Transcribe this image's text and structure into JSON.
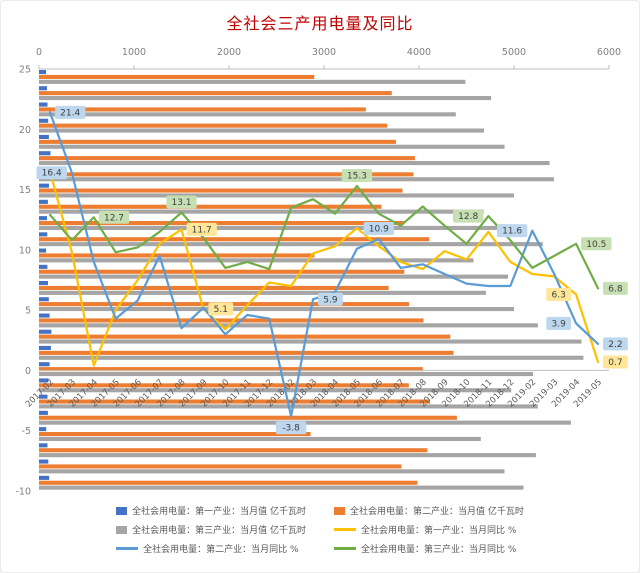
{
  "title": "全社会三产用电量及同比",
  "title_color": "#C00000",
  "legend": {
    "text_color": "#595959"
  },
  "chart_data": {
    "type": "combo-bar-line",
    "title": "全社会三产用电量及同比",
    "top_axis": {
      "min": 0,
      "max": 6000,
      "ticks": [
        0,
        1000,
        2000,
        3000,
        4000,
        5000,
        6000
      ]
    },
    "left_axis": {
      "min": -10,
      "max": 25,
      "ticks": [
        25,
        20,
        15,
        10,
        5,
        0,
        -5,
        -10
      ]
    },
    "axis_color": "#808080",
    "category_label_color": "#595959",
    "gridline_color": "#BFBFBF",
    "categories": [
      "2017-02",
      "2017-03",
      "2017-04",
      "2017-05",
      "2017-06",
      "2017-07",
      "2017-08",
      "2017-09",
      "2017-10",
      "2017-11",
      "2017-12",
      "2018-02",
      "2018-03",
      "2018-04",
      "2018-05",
      "2018-06",
      "2018-07",
      "2018-08",
      "2018-09",
      "2018-10",
      "2018-11",
      "2018-12",
      "2019-02",
      "2019-03",
      "2019-04",
      "2019-05"
    ],
    "bar_series": [
      {
        "id": "primary-value",
        "name": "全社会用电量：第一产业：当月值 亿千瓦时",
        "color": "#4472C4",
        "values": [
          75,
          84,
          90,
          97,
          104,
          121,
          115,
          105,
          94,
          84,
          87,
          75,
          88,
          95,
          103,
          112,
          130,
          125,
          112,
          100,
          90,
          94,
          76,
          90,
          98,
          106
        ]
      },
      {
        "id": "secondary-value",
        "name": "全社会用电量：第二产业：当月值 亿千瓦时",
        "color": "#ED7D31",
        "values": [
          2898,
          3714,
          3440,
          3666,
          3757,
          3957,
          3941,
          3826,
          3605,
          3839,
          4108,
          2899,
          3845,
          3680,
          3895,
          4047,
          4329,
          4364,
          4040,
          3894,
          4116,
          4399,
          2859,
          4088,
          3815,
          3984
        ]
      },
      {
        "id": "tertiary-value",
        "name": "全社会用电量：第三产业：当月值 亿千瓦时",
        "color": "#A5A5A5",
        "values": [
          4488,
          4759,
          4387,
          4684,
          4900,
          5375,
          5420,
          5000,
          4681,
          4920,
          5303,
          4574,
          4937,
          4704,
          5000,
          5250,
          5710,
          5730,
          5200,
          4970,
          5250,
          5600,
          4650,
          5230,
          4900,
          5100
        ]
      }
    ],
    "line_series": [
      {
        "id": "primary-yoy",
        "name": "全社会用电量：第一产业：当月同比 %",
        "color": "#FFC000",
        "label_bg": "#FFE699",
        "values": [
          16.5,
          9.8,
          0.4,
          5.0,
          7.5,
          10.5,
          11.7,
          5.1,
          3.4,
          5.4,
          7.3,
          7.0,
          9.7,
          10.3,
          11.8,
          10.3,
          9.0,
          8.4,
          9.9,
          9.2,
          11.5,
          9.0,
          8.0,
          7.8,
          6.3,
          0.7
        ]
      },
      {
        "id": "secondary-yoy",
        "name": "全社会用电量：第二产业：当月同比 %",
        "color": "#5B9BD5",
        "label_bg": "#BDD7EE",
        "values": [
          21.4,
          16.4,
          9.0,
          4.3,
          5.8,
          9.5,
          3.5,
          5.2,
          3.0,
          4.6,
          4.3,
          -3.8,
          5.9,
          6.5,
          10.1,
          10.9,
          8.5,
          8.8,
          8.0,
          7.2,
          7.0,
          7.0,
          11.6,
          8.0,
          3.9,
          2.2
        ]
      },
      {
        "id": "tertiary-yoy",
        "name": "全社会用电量：第三产业：当月同比 %",
        "color": "#70AD47",
        "label_bg": "#C6E0B4",
        "values": [
          12.9,
          10.8,
          12.7,
          9.8,
          10.2,
          11.5,
          13.1,
          11.0,
          8.5,
          9.0,
          8.4,
          13.5,
          14.2,
          13.0,
          15.3,
          13.0,
          12.0,
          13.6,
          12.0,
          10.5,
          12.8,
          10.8,
          8.5,
          9.5,
          10.5,
          6.8
        ]
      }
    ],
    "point_labels": [
      {
        "series": "secondary-yoy",
        "index": 0,
        "value": 21.4,
        "pos": "right"
      },
      {
        "series": "secondary-yoy",
        "index": 1,
        "value": 16.4,
        "pos": "left"
      },
      {
        "series": "tertiary-yoy",
        "index": 2,
        "value": 12.7,
        "pos": "right"
      },
      {
        "series": "tertiary-yoy",
        "index": 6,
        "value": 13.1,
        "pos": "above"
      },
      {
        "series": "primary-yoy",
        "index": 6,
        "value": 11.7,
        "pos": "right"
      },
      {
        "series": "primary-yoy",
        "index": 7,
        "value": 5.1,
        "pos": "right"
      },
      {
        "series": "secondary-yoy",
        "index": 11,
        "value": -3.8,
        "pos": "below"
      },
      {
        "series": "secondary-yoy",
        "index": 12,
        "value": 5.9,
        "pos": "right"
      },
      {
        "series": "tertiary-yoy",
        "index": 14,
        "value": 15.3,
        "pos": "above"
      },
      {
        "series": "secondary-yoy",
        "index": 15,
        "value": 10.9,
        "pos": "above"
      },
      {
        "series": "tertiary-yoy",
        "index": 20,
        "value": 12.8,
        "pos": "left"
      },
      {
        "series": "secondary-yoy",
        "index": 22,
        "value": 11.6,
        "pos": "left"
      },
      {
        "series": "tertiary-yoy",
        "index": 24,
        "value": 10.5,
        "pos": "right"
      },
      {
        "series": "primary-yoy",
        "index": 24,
        "value": 6.3,
        "pos": "left"
      },
      {
        "series": "secondary-yoy",
        "index": 24,
        "value": 3.9,
        "pos": "left"
      },
      {
        "series": "tertiary-yoy",
        "index": 25,
        "value": 6.8,
        "pos": "right"
      },
      {
        "series": "secondary-yoy",
        "index": 25,
        "value": 2.2,
        "pos": "right"
      },
      {
        "series": "primary-yoy",
        "index": 25,
        "value": 0.7,
        "pos": "right"
      }
    ]
  }
}
